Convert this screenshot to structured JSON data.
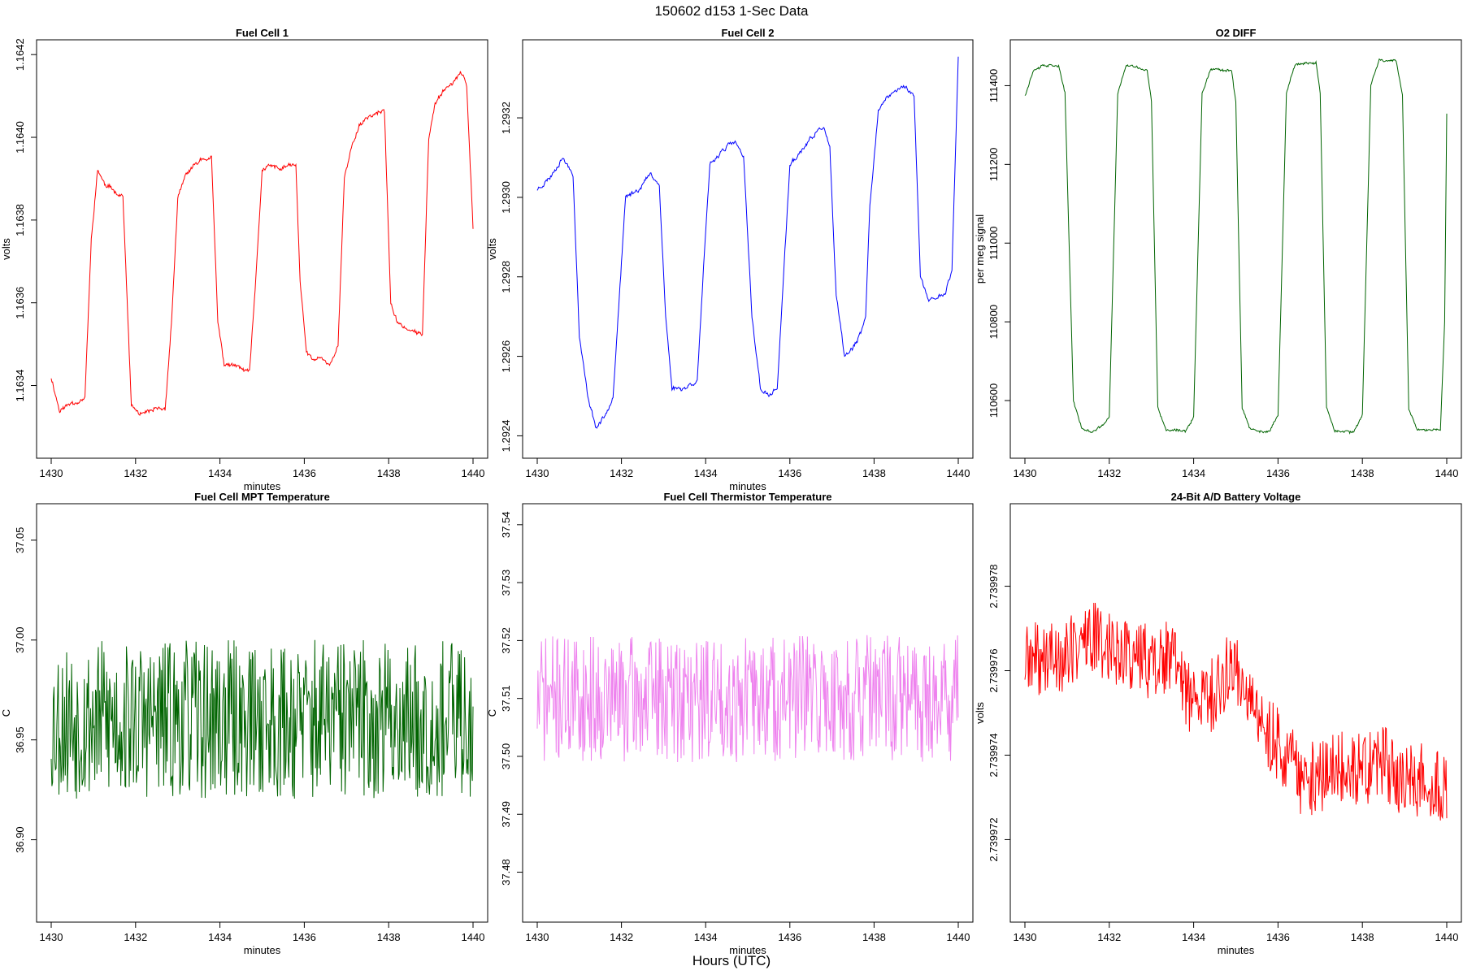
{
  "suptitle": "150602   d153   1-Sec Data",
  "xlabel_global": "Hours (UTC)",
  "chart_data": [
    {
      "type": "line",
      "title": "Fuel Cell 1",
      "xlabel": "minutes",
      "ylabel": "volts",
      "color": "#ff0000",
      "xlim": [
        1430,
        1440
      ],
      "ylim": [
        1.16324,
        1.16422
      ],
      "xticks": [
        1430,
        1432,
        1434,
        1436,
        1438,
        1440
      ],
      "xtick_labels": [
        "1430",
        "1432",
        "1434",
        "1436",
        "1438",
        "1440"
      ],
      "yticks": [
        1.1634,
        1.1636,
        1.1638,
        1.164,
        1.1642
      ],
      "ytick_labels": [
        "1.1634",
        "1.1636",
        "1.1638",
        "1.1640",
        "1.1642"
      ],
      "keypoints": {
        "x": [
          1430.0,
          1430.2,
          1430.5,
          1430.8,
          1430.95,
          1431.1,
          1431.3,
          1431.5,
          1431.7,
          1431.9,
          1432.1,
          1432.3,
          1432.5,
          1432.7,
          1432.85,
          1433.0,
          1433.2,
          1433.4,
          1433.6,
          1433.8,
          1433.95,
          1434.1,
          1434.3,
          1434.5,
          1434.7,
          1434.85,
          1435.0,
          1435.2,
          1435.4,
          1435.6,
          1435.8,
          1435.9,
          1436.05,
          1436.2,
          1436.4,
          1436.6,
          1436.8,
          1436.95,
          1437.1,
          1437.3,
          1437.5,
          1437.7,
          1437.9,
          1438.05,
          1438.2,
          1438.4,
          1438.6,
          1438.8,
          1438.95,
          1439.1,
          1439.3,
          1439.5,
          1439.7,
          1439.85,
          1440.0
        ],
        "y": [
          1.16342,
          1.16334,
          1.16336,
          1.16337,
          1.16375,
          1.16392,
          1.16388,
          1.16387,
          1.16386,
          1.16335,
          1.16333,
          1.16333,
          1.16334,
          1.16334,
          1.16355,
          1.16385,
          1.16391,
          1.16393,
          1.16395,
          1.16395,
          1.16355,
          1.16345,
          1.16345,
          1.16344,
          1.16343,
          1.16365,
          1.16392,
          1.16393,
          1.16392,
          1.16393,
          1.16393,
          1.16365,
          1.16348,
          1.16346,
          1.16347,
          1.16345,
          1.1635,
          1.1639,
          1.16397,
          1.16403,
          1.16405,
          1.16406,
          1.16406,
          1.1636,
          1.16355,
          1.16354,
          1.16353,
          1.16352,
          1.164,
          1.16409,
          1.16412,
          1.16413,
          1.16416,
          1.16412,
          1.16378
        ]
      },
      "noise": 1.2e-05,
      "noise_scale": 0.1,
      "seed": 11
    },
    {
      "type": "line",
      "title": "Fuel Cell 2",
      "xlabel": "minutes",
      "ylabel": "volts",
      "color": "#0000ff",
      "xlim": [
        1430,
        1440
      ],
      "ylim": [
        1.29236,
        1.29338
      ],
      "xticks": [
        1430,
        1432,
        1434,
        1436,
        1438,
        1440
      ],
      "xtick_labels": [
        "1430",
        "1432",
        "1434",
        "1436",
        "1438",
        "1440"
      ],
      "yticks": [
        1.2924,
        1.2926,
        1.2928,
        1.293,
        1.2932
      ],
      "ytick_labels": [
        "1.2924",
        "1.2926",
        "1.2928",
        "1.2930",
        "1.2932"
      ],
      "keypoints": {
        "x": [
          1430.0,
          1430.3,
          1430.6,
          1430.85,
          1431.0,
          1431.2,
          1431.4,
          1431.6,
          1431.8,
          1431.95,
          1432.1,
          1432.4,
          1432.7,
          1432.9,
          1433.05,
          1433.2,
          1433.5,
          1433.8,
          1433.95,
          1434.1,
          1434.4,
          1434.7,
          1434.9,
          1435.1,
          1435.3,
          1435.5,
          1435.7,
          1435.85,
          1436.0,
          1436.3,
          1436.6,
          1436.8,
          1436.95,
          1437.1,
          1437.3,
          1437.5,
          1437.7,
          1437.8,
          1437.9,
          1438.1,
          1438.4,
          1438.7,
          1438.95,
          1439.1,
          1439.3,
          1439.5,
          1439.7,
          1439.85,
          1440.0
        ],
        "y": [
          1.29302,
          1.29305,
          1.2931,
          1.29306,
          1.29265,
          1.2925,
          1.29242,
          1.29245,
          1.2925,
          1.29275,
          1.293,
          1.29302,
          1.29306,
          1.29303,
          1.2927,
          1.29252,
          1.29252,
          1.29254,
          1.29282,
          1.29308,
          1.29312,
          1.29314,
          1.2931,
          1.2927,
          1.29252,
          1.2925,
          1.29252,
          1.2928,
          1.29308,
          1.29312,
          1.29316,
          1.29318,
          1.29312,
          1.29275,
          1.2926,
          1.29262,
          1.29266,
          1.2927,
          1.29298,
          1.29322,
          1.29326,
          1.29328,
          1.29326,
          1.2928,
          1.29274,
          1.29275,
          1.29276,
          1.29282,
          1.29335
        ]
      },
      "noise": 6e-06,
      "noise_scale": 0.35,
      "seed": 23
    },
    {
      "type": "line",
      "title": "O2 DIFF",
      "xlabel": "",
      "ylabel": "per meg signal",
      "color": "#006400",
      "xlim": [
        1430,
        1440
      ],
      "ylim": [
        110470,
        111500
      ],
      "xticks": [
        1430,
        1432,
        1434,
        1436,
        1438,
        1440
      ],
      "xtick_labels": [
        "1430",
        "1432",
        "1434",
        "1436",
        "1438",
        "1440"
      ],
      "yticks": [
        110600,
        110800,
        111000,
        111200,
        111400
      ],
      "ytick_labels": [
        "110600",
        "110800",
        "111000",
        "111200",
        "111400"
      ],
      "keypoints": {
        "x": [
          1430.0,
          1430.2,
          1430.4,
          1430.8,
          1430.95,
          1431.15,
          1431.35,
          1431.6,
          1431.85,
          1432.0,
          1432.2,
          1432.4,
          1432.9,
          1433.0,
          1433.15,
          1433.35,
          1433.8,
          1434.0,
          1434.2,
          1434.4,
          1434.9,
          1435.0,
          1435.15,
          1435.35,
          1435.8,
          1436.0,
          1436.2,
          1436.4,
          1436.9,
          1437.0,
          1437.15,
          1437.35,
          1437.8,
          1438.0,
          1438.2,
          1438.4,
          1438.8,
          1438.95,
          1439.1,
          1439.3,
          1439.85,
          1439.95,
          1440.0
        ],
        "y": [
          111375,
          111440,
          111455,
          111455,
          111380,
          110600,
          110530,
          110520,
          110535,
          110560,
          111380,
          111450,
          111440,
          111360,
          110580,
          110525,
          110520,
          110560,
          111380,
          111445,
          111440,
          111360,
          110580,
          110525,
          110520,
          110560,
          111380,
          111455,
          111455,
          111380,
          110580,
          110525,
          110520,
          110560,
          111400,
          111465,
          111465,
          111380,
          110580,
          110525,
          110525,
          110800,
          111330
        ]
      },
      "noise": 8,
      "noise_scale": 0.08,
      "seed": 37
    },
    {
      "type": "line",
      "title": "Fuel Cell MPT Temperature",
      "xlabel": "minutes",
      "ylabel": "C",
      "color": "#006400",
      "xlim": [
        1430,
        1440
      ],
      "ylim": [
        36.862,
        37.065
      ],
      "xticks": [
        1430,
        1432,
        1434,
        1436,
        1438,
        1440
      ],
      "xtick_labels": [
        "1430",
        "1432",
        "1434",
        "1436",
        "1438",
        "1440"
      ],
      "yticks": [
        36.9,
        36.95,
        37.0,
        37.05
      ],
      "ytick_labels": [
        "36.90",
        "36.95",
        "37.00",
        "37.05"
      ],
      "keypoints": {
        "x": [
          1430.0,
          1440.0
        ],
        "y": [
          36.96,
          36.96
        ]
      },
      "noise": 0.04,
      "noise_scale": 0.0,
      "seed": 53
    },
    {
      "type": "line",
      "title": "Fuel Cell Thermistor Temperature",
      "xlabel": "minutes",
      "ylabel": "C",
      "color": "#ee82ee",
      "xlim": [
        1430,
        1440
      ],
      "ylim": [
        37.4725,
        37.5425
      ],
      "xticks": [
        1430,
        1432,
        1434,
        1436,
        1438,
        1440
      ],
      "xtick_labels": [
        "1430",
        "1432",
        "1434",
        "1436",
        "1438",
        "1440"
      ],
      "yticks": [
        37.48,
        37.49,
        37.5,
        37.51,
        37.52,
        37.53,
        37.54
      ],
      "ytick_labels": [
        "37.48",
        "37.49",
        "37.50",
        "37.51",
        "37.52",
        "37.53",
        "37.54"
      ],
      "keypoints": {
        "x": [
          1430.0,
          1440.0
        ],
        "y": [
          37.51,
          37.51
        ]
      },
      "noise": 0.011,
      "noise_scale": 0.0,
      "seed": 71
    },
    {
      "type": "line",
      "title": "24-Bit A/D Battery Voltage",
      "xlabel": "minutes",
      "ylabel": "volts",
      "color": "#ff0000",
      "xlim": [
        1430,
        1440
      ],
      "ylim": [
        2.7399702,
        2.7399798
      ],
      "xticks": [
        1430,
        1432,
        1434,
        1436,
        1438,
        1440
      ],
      "xtick_labels": [
        "1430",
        "1432",
        "1434",
        "1436",
        "1438",
        "1440"
      ],
      "yticks": [
        2.739972,
        2.739974,
        2.739976,
        2.739978
      ],
      "ytick_labels": [
        "2.739972",
        "2.739974",
        "2.739976",
        "2.739978"
      ],
      "keypoints": {
        "x": [
          1430.0,
          1431.0,
          1431.5,
          1432.0,
          1432.5,
          1433.0,
          1433.5,
          1434.0,
          1434.5,
          1435.0,
          1435.5,
          1436.0,
          1436.5,
          1437.0,
          1437.5,
          1438.0,
          1438.5,
          1439.0,
          1439.5,
          1440.0
        ],
        "y": [
          2.7399762,
          2.7399764,
          2.7399768,
          2.7399766,
          2.7399764,
          2.7399762,
          2.7399763,
          2.7399752,
          2.7399755,
          2.7399762,
          2.7399748,
          2.7399743,
          2.7399735,
          2.7399734,
          2.7399738,
          2.7399736,
          2.7399738,
          2.7399733,
          2.7399735,
          2.7399732
        ]
      },
      "noise": 9e-07,
      "noise_scale": 0.0,
      "seed": 89
    }
  ]
}
